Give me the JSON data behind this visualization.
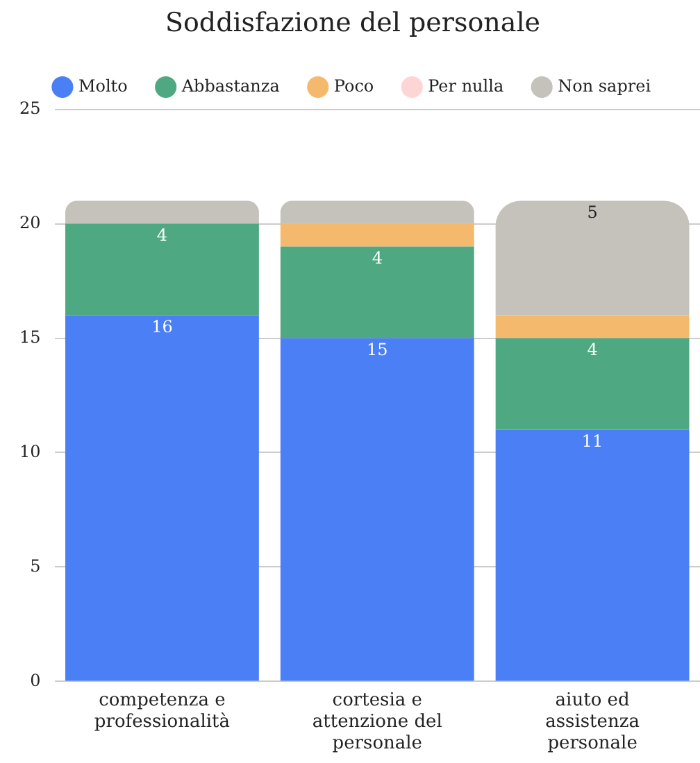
{
  "chart_data": {
    "type": "bar",
    "title": "Soddisfazione del personale",
    "stacked": true,
    "legend": "top",
    "grid": "y",
    "categories": [
      "competenza e professionalità",
      "cortesia e attenzione del personale",
      "aiuto ed assistenza personale"
    ],
    "series": [
      {
        "name": "Molto",
        "color": "#4a7ff5",
        "values": [
          16,
          15,
          11
        ],
        "value_labels": [
          "16",
          "15",
          "11"
        ]
      },
      {
        "name": "Abbastanza",
        "color": "#4ea882",
        "values": [
          4,
          4,
          4
        ],
        "value_labels": [
          "4",
          "4",
          "4"
        ]
      },
      {
        "name": "Poco",
        "color": "#f5b96e",
        "values": [
          0,
          1,
          1
        ],
        "value_labels": [
          null,
          null,
          null
        ]
      },
      {
        "name": "Per nulla",
        "color": "#fdd5d5",
        "values": [
          0,
          0,
          0
        ],
        "value_labels": [
          null,
          null,
          null
        ]
      },
      {
        "name": "Non saprei",
        "color": "#c5c1bb",
        "values": [
          1,
          1,
          5
        ],
        "value_labels": [
          null,
          null,
          "5"
        ]
      }
    ],
    "ylim": [
      0,
      25
    ],
    "yticks": [
      0,
      5,
      10,
      15,
      20,
      25
    ]
  }
}
